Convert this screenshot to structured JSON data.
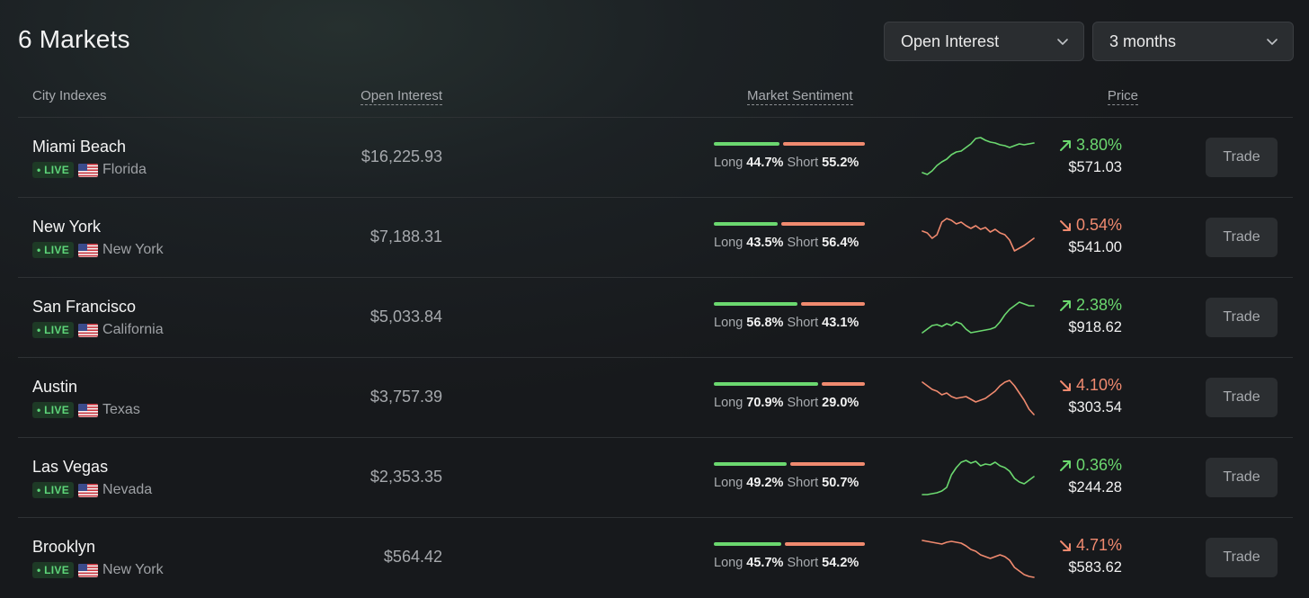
{
  "title": "6 Markets",
  "filters": {
    "sort": {
      "value": "Open Interest",
      "icon": "chevron-down-icon"
    },
    "range": {
      "value": "3 months",
      "icon": "chevron-down-icon"
    }
  },
  "columns": {
    "city": "City Indexes",
    "open_interest": "Open Interest",
    "sentiment": "Market Sentiment",
    "price": "Price"
  },
  "colors": {
    "up": "#6bd86f",
    "down": "#f08a6f",
    "live": "#5ed67a"
  },
  "markets": [
    {
      "city": "Miami Beach",
      "live": "LIVE",
      "state": "Florida",
      "flag": "us-flag-icon",
      "open_interest": "$16,225.93",
      "long_label": "Long",
      "long": "44.7%",
      "short_label": "Short",
      "short": "55.2%",
      "long_share": 44.7,
      "short_share": 55.2,
      "direction": "up",
      "change": "3.80%",
      "price": "$571.03",
      "trend": [
        10,
        8,
        12,
        18,
        22,
        25,
        30,
        33,
        34,
        38,
        42,
        48,
        49,
        46,
        44,
        43,
        41,
        40,
        38,
        40,
        42,
        41,
        42,
        43
      ],
      "trade": "Trade"
    },
    {
      "city": "New York",
      "live": "LIVE",
      "state": "New York",
      "flag": "us-flag-icon",
      "open_interest": "$7,188.31",
      "long_label": "Long",
      "long": "43.5%",
      "short_label": "Short",
      "short": "56.4%",
      "long_share": 43.5,
      "short_share": 56.4,
      "direction": "down",
      "change": "0.54%",
      "price": "$541.00",
      "trend": [
        34,
        32,
        26,
        30,
        44,
        48,
        46,
        42,
        44,
        40,
        37,
        40,
        36,
        38,
        33,
        36,
        32,
        30,
        24,
        12,
        15,
        18,
        22,
        26
      ],
      "trade": "Trade"
    },
    {
      "city": "San Francisco",
      "live": "LIVE",
      "state": "California",
      "flag": "us-flag-icon",
      "open_interest": "$5,033.84",
      "long_label": "Long",
      "long": "56.8%",
      "short_label": "Short",
      "short": "43.1%",
      "long_share": 56.8,
      "short_share": 43.1,
      "direction": "up",
      "change": "2.38%",
      "price": "$918.62",
      "trend": [
        10,
        14,
        18,
        19,
        17,
        20,
        18,
        22,
        20,
        14,
        10,
        11,
        12,
        13,
        14,
        16,
        22,
        30,
        36,
        40,
        44,
        42,
        40,
        40
      ],
      "trade": "Trade"
    },
    {
      "city": "Austin",
      "live": "LIVE",
      "state": "Texas",
      "flag": "us-flag-icon",
      "open_interest": "$3,757.39",
      "long_label": "Long",
      "long": "70.9%",
      "short_label": "Short",
      "short": "29.0%",
      "long_share": 70.9,
      "short_share": 29.0,
      "direction": "down",
      "change": "4.10%",
      "price": "$303.54",
      "trend": [
        44,
        40,
        36,
        34,
        30,
        32,
        28,
        26,
        27,
        28,
        25,
        22,
        24,
        26,
        30,
        34,
        40,
        44,
        46,
        40,
        32,
        24,
        14,
        8
      ],
      "trade": "Trade"
    },
    {
      "city": "Las Vegas",
      "live": "LIVE",
      "state": "Nevada",
      "flag": "us-flag-icon",
      "open_interest": "$2,353.35",
      "long_label": "Long",
      "long": "49.2%",
      "short_label": "Short",
      "short": "50.7%",
      "long_share": 49.2,
      "short_share": 50.7,
      "direction": "up",
      "change": "0.36%",
      "price": "$244.28",
      "trend": [
        8,
        8,
        9,
        10,
        12,
        16,
        30,
        38,
        44,
        46,
        43,
        45,
        40,
        42,
        41,
        44,
        40,
        38,
        34,
        26,
        22,
        20,
        24,
        28
      ],
      "trade": "Trade"
    },
    {
      "city": "Brooklyn",
      "live": "LIVE",
      "state": "New York",
      "flag": "us-flag-icon",
      "open_interest": "$564.42",
      "long_label": "Long",
      "long": "45.7%",
      "short_label": "Short",
      "short": "54.2%",
      "long_share": 45.7,
      "short_share": 54.2,
      "direction": "down",
      "change": "4.71%",
      "price": "$583.62",
      "trend": [
        46,
        45,
        44,
        43,
        42,
        44,
        45,
        44,
        43,
        40,
        36,
        34,
        30,
        28,
        26,
        28,
        30,
        28,
        24,
        16,
        12,
        8,
        6,
        5
      ],
      "trade": "Trade"
    }
  ]
}
